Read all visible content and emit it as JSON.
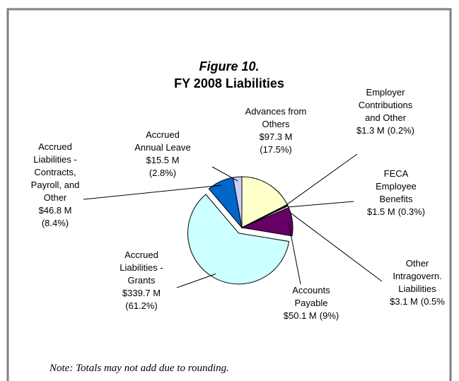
{
  "chart_data": {
    "type": "pie",
    "title": "Figure 10.",
    "subtitle": "FY 2008 Liabilities",
    "categories": [
      [
        "Advances from",
        "Others"
      ],
      [
        "Employer",
        "Contributions",
        "and Other"
      ],
      [
        "FECA",
        "Employee",
        "Benefits"
      ],
      [
        "Other",
        "Intragovern.",
        "Liabilities"
      ],
      [
        "Accounts",
        "Payable"
      ],
      [
        "Accrued",
        "Liabilities -",
        "Grants"
      ],
      [
        "Accrued",
        "Liabilities -",
        "Contracts,",
        "Payroll, and",
        "Other"
      ],
      [
        "Accrued",
        "Annual Leave"
      ]
    ],
    "values": [
      97.3,
      1.3,
      1.5,
      3.1,
      50.1,
      339.7,
      46.8,
      15.5
    ],
    "value_labels": [
      "$97.3 M",
      "$1.3 M",
      "$1.5 M",
      "$3.1 M",
      "$50.1 M",
      "$339.7 M",
      "$46.8 M",
      "$15.5 M"
    ],
    "percents": [
      17.5,
      0.2,
      0.3,
      0.5,
      9,
      61.2,
      8.4,
      2.8
    ],
    "percent_labels": [
      "(17.5%)",
      "(0.2%)",
      "(0.3%)",
      "(0.5%",
      "(9%)",
      "(61.2%)",
      "(8.4%)",
      "(2.8%)"
    ],
    "colors": [
      "#ffffcc",
      "#c0c0c0",
      "#339999",
      "#ffffff",
      "#660066",
      "#ccffff",
      "#0066cc",
      "#ccccff"
    ],
    "note": "Note:  Totals may not add due to rounding."
  }
}
